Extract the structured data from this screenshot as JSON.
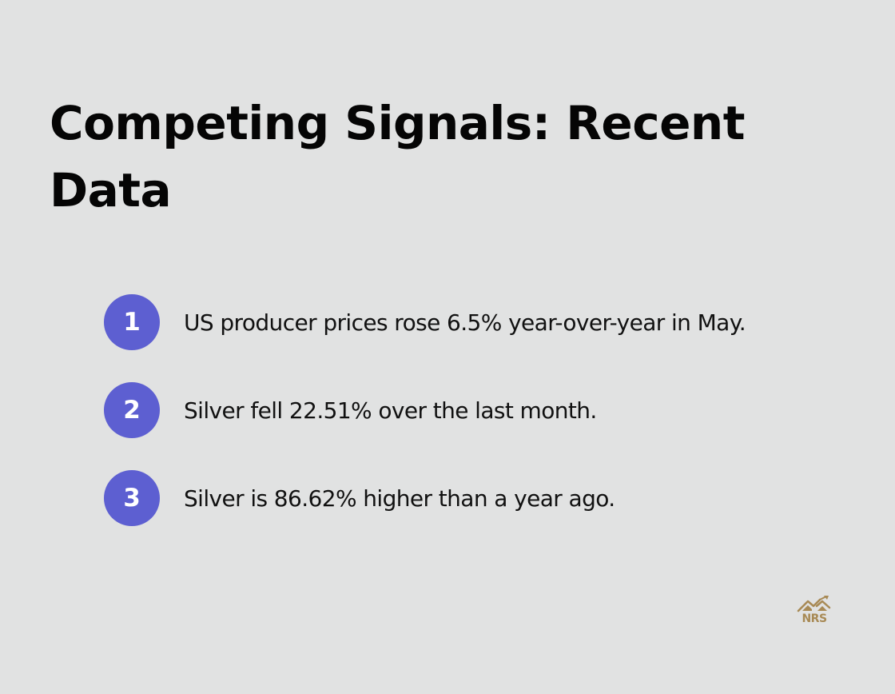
{
  "title": "Competing Signals: Recent Data",
  "items": [
    {
      "number": "1",
      "text": "US producer prices rose 6.5% year-over-year in May."
    },
    {
      "number": "2",
      "text": "Silver fell 22.51% over the last month."
    },
    {
      "number": "3",
      "text": "Silver is 86.62% higher than a year ago."
    }
  ],
  "logo": {
    "text": "NRS",
    "icon": "house-chart-logo-icon"
  },
  "colors": {
    "background": "#e1e2e2",
    "badge": "#5d5fd1",
    "logo": "#a88a55"
  }
}
